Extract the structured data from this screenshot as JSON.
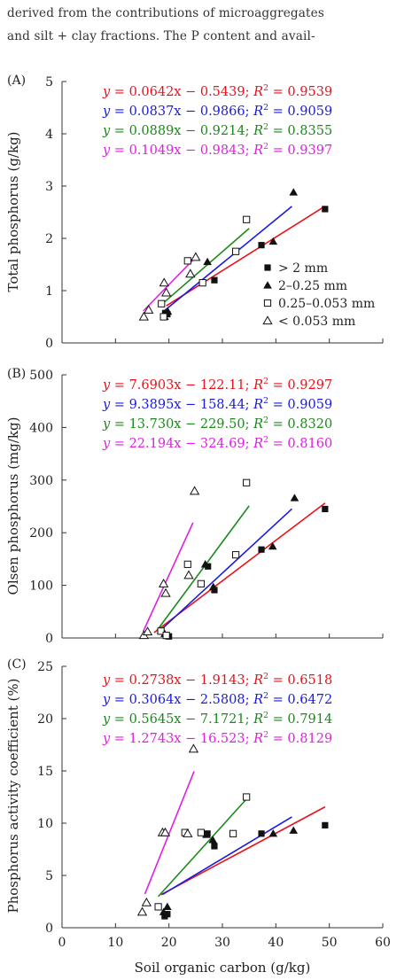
{
  "intro": {
    "line1": "derived from the contributions of microaggregates",
    "line2": "and silt + clay fractions. The P content and avail-"
  },
  "figure": {
    "xlabel": "Soil organic carbon (g/kg)",
    "x_ticks": [
      "0",
      "10",
      "20",
      "30",
      "40",
      "50",
      "60"
    ],
    "legend": [
      {
        "label": "> 2 mm",
        "marker": "filled-square"
      },
      {
        "label": "2–0.25 mm",
        "marker": "filled-triangle"
      },
      {
        "label": "0.25–0.053 mm",
        "marker": "open-square"
      },
      {
        "label": "< 0.053 mm",
        "marker": "open-triangle"
      }
    ],
    "series_colors": [
      "#e8121b",
      "#1a1ae0",
      "#1b8a1b",
      "#e020e0"
    ]
  },
  "chart_data": [
    {
      "type": "scatter",
      "panel_label": "(A)",
      "ylabel": "Total phosphorus (g/kg)",
      "xlim": [
        0,
        60
      ],
      "ylim": [
        0,
        5
      ],
      "y_ticks": [
        "0",
        "1",
        "2",
        "3",
        "4",
        "5"
      ],
      "equations": [
        {
          "y": "y",
          "rhs": "= 0.0642x − 0.5439; ",
          "r": "R",
          "r_rhs": " = 0.9539"
        },
        {
          "y": "y",
          "rhs": "= 0.0837x − 0.9866; ",
          "r": "R",
          "r_rhs": " = 0.9059"
        },
        {
          "y": "y",
          "rhs": "= 0.0889x − 0.9214; ",
          "r": "R",
          "r_rhs": " = 0.8355"
        },
        {
          "y": "y",
          "rhs": "= 0.1049x − 0.9843; ",
          "r": "R",
          "r_rhs": " = 0.9397"
        }
      ],
      "series": [
        {
          "marker": "filled-square",
          "fit": {
            "slope": 0.0642,
            "intercept": -0.5439,
            "x_range": [
              19.5,
              49.2
            ]
          },
          "points": [
            [
              19.7,
              0.55
            ],
            [
              19.3,
              0.57
            ],
            [
              28.5,
              1.2
            ],
            [
              37.3,
              1.87
            ],
            [
              49.2,
              2.56
            ]
          ]
        },
        {
          "marker": "filled-triangle",
          "fit": {
            "slope": 0.0837,
            "intercept": -0.9866,
            "x_range": [
              19.0,
              43.0
            ]
          },
          "points": [
            [
              19.2,
              0.5
            ],
            [
              19.8,
              0.6
            ],
            [
              27.2,
              1.55
            ],
            [
              39.5,
              1.94
            ],
            [
              43.3,
              2.88
            ]
          ]
        },
        {
          "marker": "open-square",
          "fit": {
            "slope": 0.0889,
            "intercept": -0.9214,
            "x_range": [
              18.5,
              35.0
            ]
          },
          "points": [
            [
              18.6,
              0.75
            ],
            [
              19.0,
              0.5
            ],
            [
              23.5,
              1.57
            ],
            [
              26.3,
              1.15
            ],
            [
              32.5,
              1.75
            ],
            [
              34.5,
              2.36
            ]
          ]
        },
        {
          "marker": "open-triangle",
          "fit": {
            "slope": 0.1049,
            "intercept": -0.9843,
            "x_range": [
              15.2,
              25.2
            ]
          },
          "points": [
            [
              15.3,
              0.5
            ],
            [
              16.2,
              0.63
            ],
            [
              19.1,
              1.15
            ],
            [
              19.5,
              0.96
            ],
            [
              24.0,
              1.32
            ],
            [
              25.0,
              1.64
            ]
          ]
        }
      ]
    },
    {
      "type": "scatter",
      "panel_label": "(B)",
      "ylabel": "Olsen phosphorus (mg/kg)",
      "xlim": [
        0,
        60
      ],
      "ylim": [
        0,
        500
      ],
      "y_ticks": [
        "0",
        "100",
        "200",
        "300",
        "400",
        "500"
      ],
      "equations": [
        {
          "y": "y",
          "rhs": "= 7.6903x − 122.11; ",
          "r": "R",
          "r_rhs": " = 0.9297"
        },
        {
          "y": "y",
          "rhs": "= 9.3895x − 158.44; ",
          "r": "R",
          "r_rhs": " = 0.9059"
        },
        {
          "y": "y",
          "rhs": "= 13.730x − 229.50; ",
          "r": "R",
          "r_rhs": " = 0.8320"
        },
        {
          "y": "y",
          "rhs": "= 22.194x − 324.69; ",
          "r": "R",
          "r_rhs": " = 0.8160"
        }
      ],
      "series": [
        {
          "marker": "filled-square",
          "fit": {
            "slope": 7.6903,
            "intercept": -122.11,
            "x_range": [
              17.2,
              49.2
            ]
          },
          "points": [
            [
              19.5,
              5
            ],
            [
              20.0,
              3
            ],
            [
              27.3,
              136
            ],
            [
              28.5,
              91
            ],
            [
              37.3,
              168
            ],
            [
              49.2,
              245
            ]
          ]
        },
        {
          "marker": "filled-triangle",
          "fit": {
            "slope": 9.3895,
            "intercept": -158.44,
            "x_range": [
              17.8,
              43.0
            ]
          },
          "points": [
            [
              19.2,
              8
            ],
            [
              19.8,
              4
            ],
            [
              26.8,
              140
            ],
            [
              28.3,
              97
            ],
            [
              39.4,
              174
            ],
            [
              43.5,
              266
            ]
          ]
        },
        {
          "marker": "open-square",
          "fit": {
            "slope": 13.73,
            "intercept": -229.5,
            "x_range": [
              17.7,
              35.0
            ]
          },
          "points": [
            [
              18.5,
              13
            ],
            [
              19.5,
              5
            ],
            [
              23.5,
              140
            ],
            [
              26.0,
              103
            ],
            [
              32.5,
              158
            ],
            [
              34.5,
              295
            ]
          ]
        },
        {
          "marker": "open-triangle",
          "fit": {
            "slope": 22.194,
            "intercept": -324.69,
            "x_range": [
              15.2,
              24.5
            ]
          },
          "points": [
            [
              15.3,
              5
            ],
            [
              16.0,
              12
            ],
            [
              19.0,
              103
            ],
            [
              19.4,
              85
            ],
            [
              23.7,
              119
            ],
            [
              24.8,
              279
            ]
          ]
        }
      ]
    },
    {
      "type": "scatter",
      "panel_label": "(C)",
      "ylabel": "Phosphorus activity coefficient (%)",
      "xlim": [
        0,
        60
      ],
      "ylim": [
        0,
        25
      ],
      "y_ticks": [
        "0",
        "5",
        "10",
        "15",
        "20",
        "25"
      ],
      "equations": [
        {
          "y": "y",
          "rhs": "= 0.2738x − 1.9143; ",
          "r": "R",
          "r_rhs": " = 0.6518"
        },
        {
          "y": "y",
          "rhs": "= 0.3064x − 2.5808; ",
          "r": "R",
          "r_rhs": " = 0.6472"
        },
        {
          "y": "y",
          "rhs": "= 0.5645x − 7.1721; ",
          "r": "R",
          "r_rhs": " = 0.7914"
        },
        {
          "y": "y",
          "rhs": "= 1.2743x − 16.523; ",
          "r": "R",
          "r_rhs": " = 0.8129"
        }
      ],
      "series": [
        {
          "marker": "filled-square",
          "fit": {
            "slope": 0.2738,
            "intercept": -1.9143,
            "x_range": [
              18.5,
              49.2
            ]
          },
          "points": [
            [
              19.2,
              1.1
            ],
            [
              19.7,
              1.3
            ],
            [
              27.2,
              9.0
            ],
            [
              28.5,
              7.8
            ],
            [
              37.3,
              9.0
            ],
            [
              49.2,
              9.8
            ]
          ]
        },
        {
          "marker": "filled-triangle",
          "fit": {
            "slope": 0.3064,
            "intercept": -2.5808,
            "x_range": [
              18.8,
              43.0
            ]
          },
          "points": [
            [
              19.0,
              1.5
            ],
            [
              19.7,
              2.0
            ],
            [
              27.0,
              8.9
            ],
            [
              28.2,
              8.4
            ],
            [
              39.5,
              9.0
            ],
            [
              43.3,
              9.3
            ]
          ]
        },
        {
          "marker": "open-square",
          "fit": {
            "slope": 0.5645,
            "intercept": -7.1721,
            "x_range": [
              18.0,
              35.0
            ]
          },
          "points": [
            [
              18.0,
              2.0
            ],
            [
              23.0,
              9.1
            ],
            [
              26.0,
              9.1
            ],
            [
              32.0,
              9.0
            ],
            [
              34.5,
              12.5
            ]
          ]
        },
        {
          "marker": "open-triangle",
          "fit": {
            "slope": 1.2743,
            "intercept": -16.523,
            "x_range": [
              15.5,
              24.7
            ]
          },
          "points": [
            [
              15.0,
              1.5
            ],
            [
              15.8,
              2.4
            ],
            [
              18.8,
              9.1
            ],
            [
              19.3,
              9.1
            ],
            [
              23.5,
              9.0
            ],
            [
              24.6,
              17.1
            ]
          ]
        }
      ]
    }
  ]
}
